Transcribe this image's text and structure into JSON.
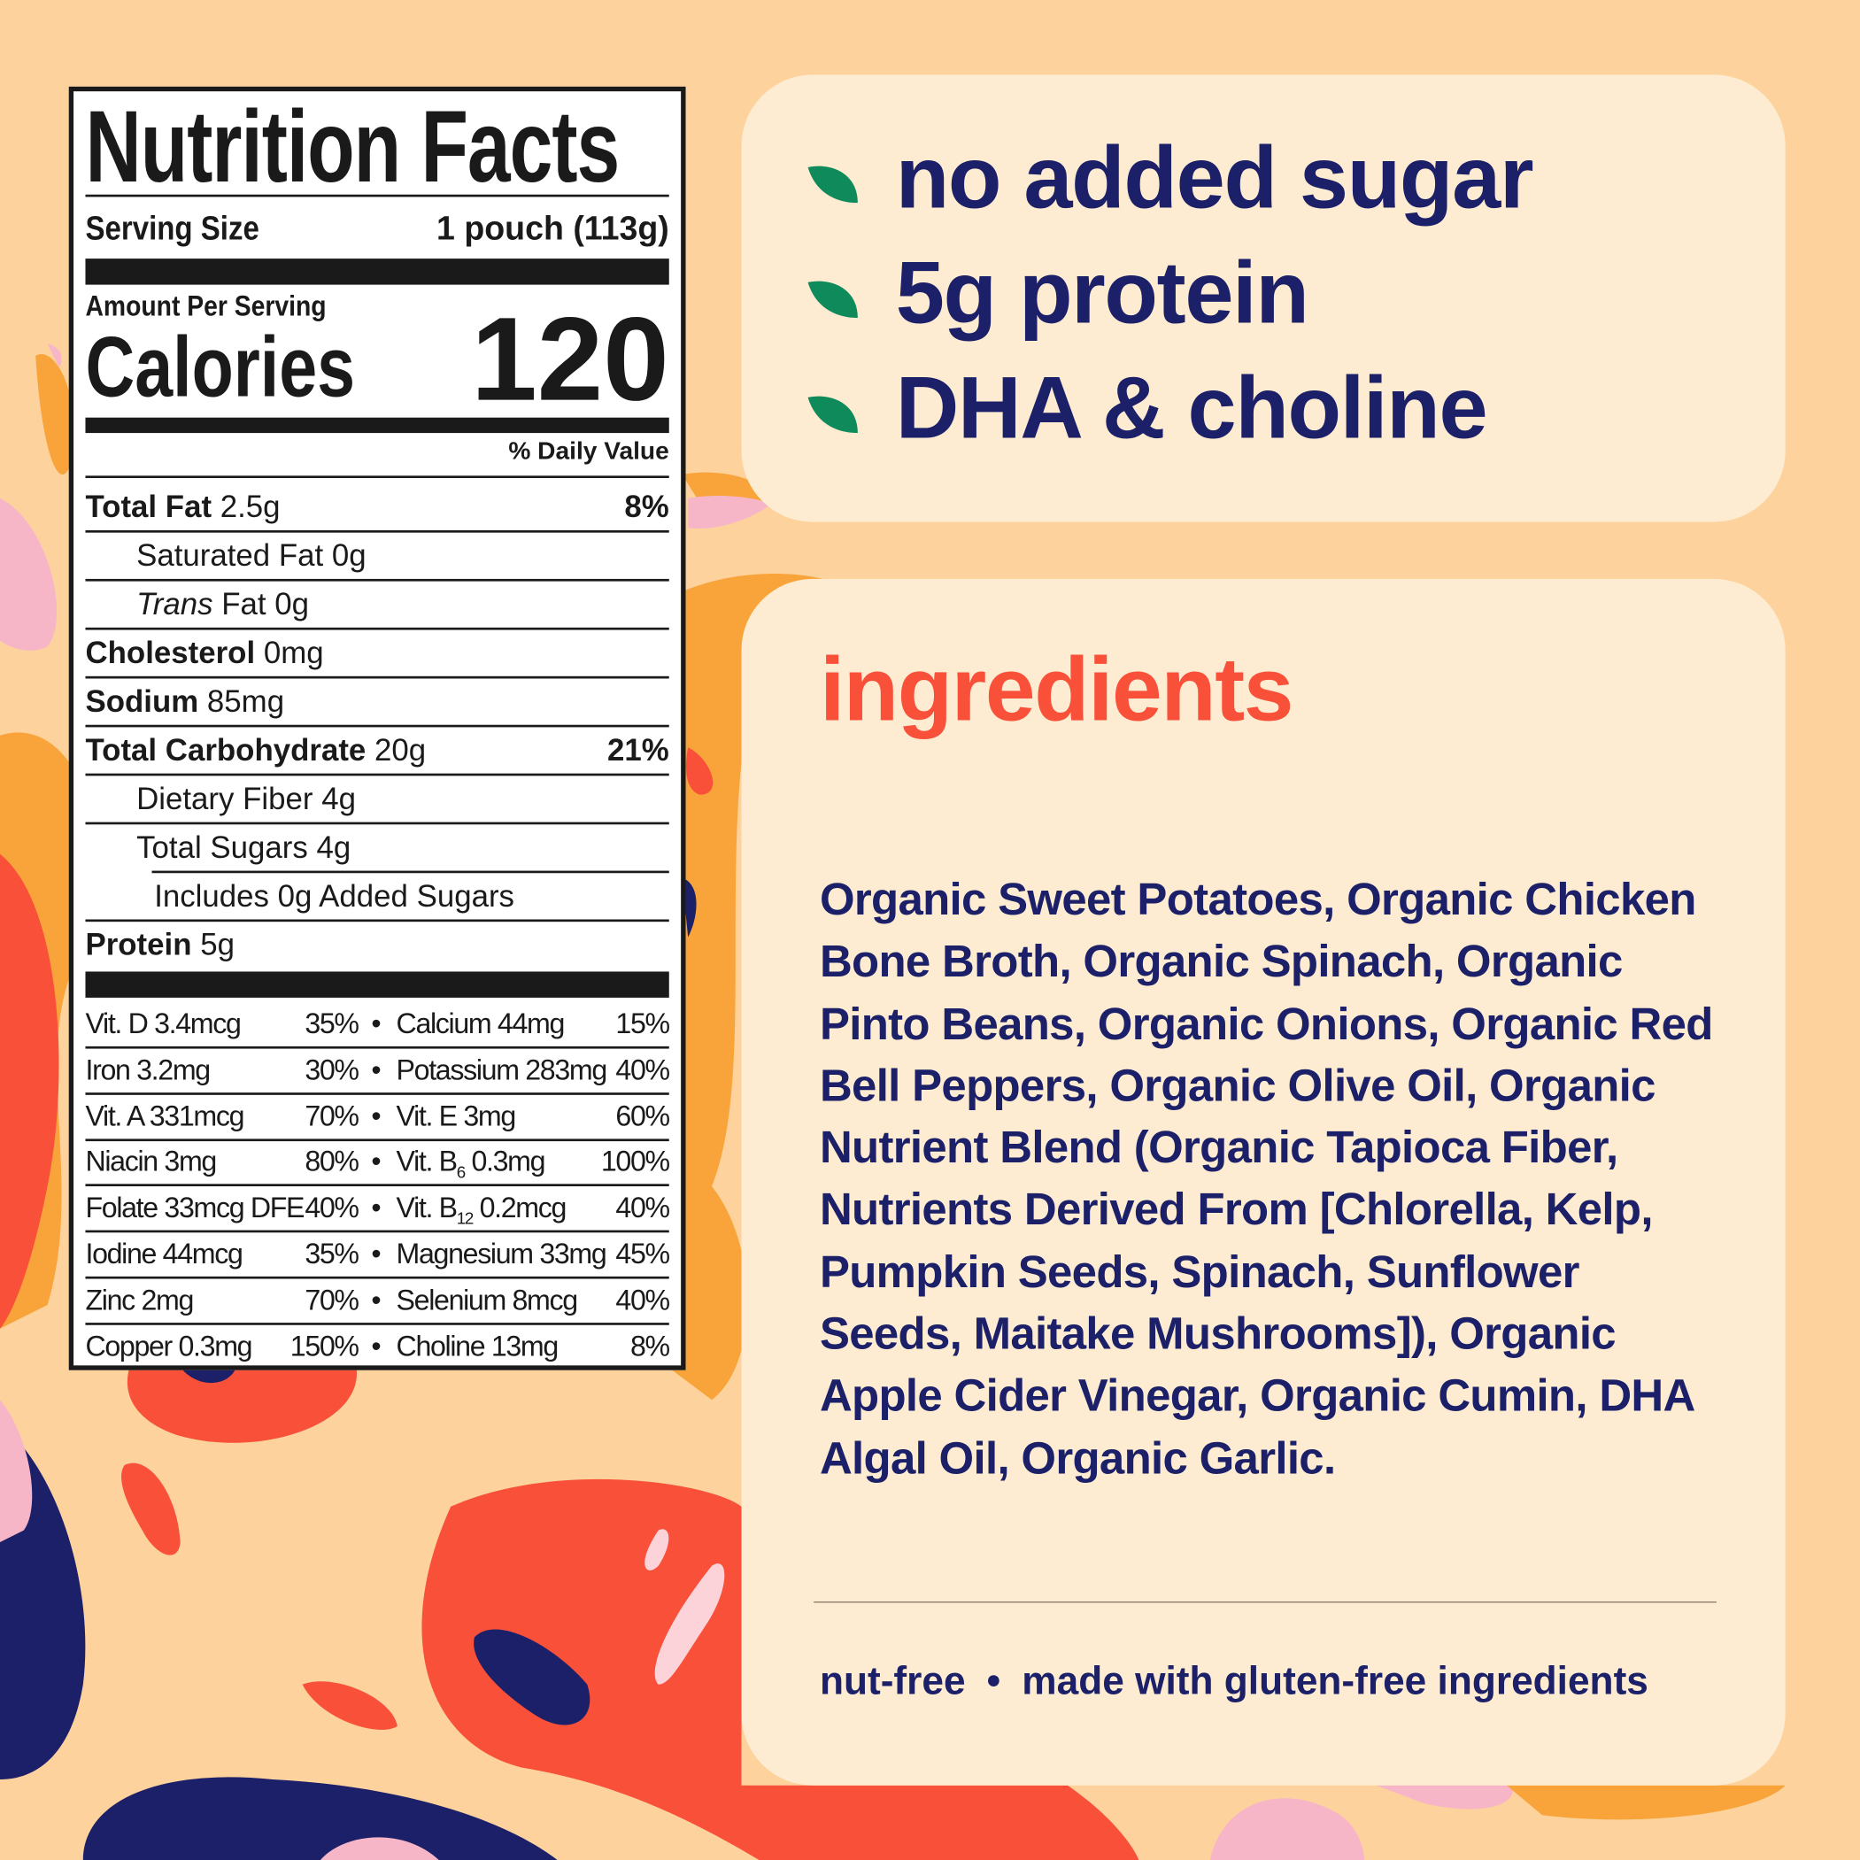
{
  "colors": {
    "background": "#fdd29d",
    "card": "#fdecd1",
    "navy": "#1b2068",
    "red": "#f9503a",
    "green": "#0e8a5b",
    "orange": "#f9a43a",
    "pink": "#f7b6c8"
  },
  "nutrition": {
    "title": "Nutrition Facts",
    "serving_label": "Serving Size",
    "serving_value": "1 pouch (113g)",
    "amount_per_serving": "Amount Per Serving",
    "calories_label": "Calories",
    "calories_value": "120",
    "daily_value_header": "% Daily Value",
    "rows": [
      {
        "name": "Total Fat",
        "amount": " 2.5g",
        "pct": "8%",
        "bold": true,
        "indent": 0
      },
      {
        "name": "Saturated Fat 0g",
        "amount": "",
        "pct": "",
        "bold": false,
        "indent": 1
      },
      {
        "name": "Trans",
        "amount": " Fat 0g",
        "pct": "",
        "bold": false,
        "indent": 1,
        "italic": true
      },
      {
        "name": "Cholesterol",
        "amount": " 0mg",
        "pct": "",
        "bold": true,
        "indent": 0
      },
      {
        "name": "Sodium",
        "amount": " 85mg",
        "pct": "",
        "bold": true,
        "indent": 0
      },
      {
        "name": "Total Carbohydrate",
        "amount": " 20g",
        "pct": "21%",
        "bold": true,
        "indent": 0
      },
      {
        "name": "Dietary Fiber 4g",
        "amount": "",
        "pct": "",
        "bold": false,
        "indent": 1
      },
      {
        "name": "Total Sugars 4g",
        "amount": "",
        "pct": "",
        "bold": false,
        "indent": 1
      },
      {
        "name": "Includes 0g Added Sugars",
        "amount": "",
        "pct": "",
        "bold": false,
        "indent": 2
      },
      {
        "name": "Protein",
        "amount": " 5g",
        "pct": "",
        "bold": true,
        "indent": 0
      }
    ],
    "vitamins": [
      {
        "l": "Vit. D 3.4mcg",
        "lp": "35%",
        "r": "Calcium 44mg",
        "rs": "",
        "rpost": "",
        "rp": "15%"
      },
      {
        "l": "Iron 3.2mg",
        "lp": "30%",
        "r": "Potassium 283mg",
        "rs": "",
        "rpost": "",
        "rp": "40%"
      },
      {
        "l": "Vit. A 331mcg",
        "lp": "70%",
        "r": "Vit. E 3mg",
        "rs": "",
        "rpost": "",
        "rp": "60%"
      },
      {
        "l": "Niacin 3mg",
        "lp": "80%",
        "r": "Vit. B",
        "rs": "6",
        "rpost": " 0.3mg",
        "rp": "100%"
      },
      {
        "l": "Folate 33mcg DFE",
        "lp": "40%",
        "r": "Vit. B",
        "rs": "12",
        "rpost": " 0.2mcg",
        "rp": "40%"
      },
      {
        "l": "Iodine 44mcg",
        "lp": "35%",
        "r": "Magnesium 33mg",
        "rs": "",
        "rpost": "",
        "rp": "45%"
      },
      {
        "l": "Zinc 2mg",
        "lp": "70%",
        "r": "Selenium 8mcg",
        "rs": "",
        "rpost": "",
        "rp": "40%"
      },
      {
        "l": "Copper 0.3mg",
        "lp": "150%",
        "r": "Choline 13mg",
        "rs": "",
        "rpost": "",
        "rp": "8%"
      }
    ],
    "bullet": "•"
  },
  "claims": [
    {
      "text": "no added sugar",
      "icon": "leaf-icon"
    },
    {
      "text": "5g protein",
      "icon": "leaf-icon"
    },
    {
      "text": "DHA & choline",
      "icon": "leaf-icon"
    }
  ],
  "ingredients": {
    "title": "ingredients",
    "text": "Organic Sweet Potatoes, Organic Chicken Bone Broth, Organic Spinach, Organic Pinto Beans, Organic Onions, Organic Red Bell Peppers, Organic Olive Oil, Organic Nutrient Blend (Organic Tapioca Fiber, Nutrients Derived From [Chlorella, Kelp, Pumpkin Seeds, Spinach, Sunflower Seeds, Maitake Mushrooms]), Organic Apple Cider Vinegar, Organic Cumin, DHA Algal Oil, Organic Garlic.",
    "footer_left": "nut-free",
    "footer_sep": "•",
    "footer_right": "made with gluten-free ingredients"
  }
}
